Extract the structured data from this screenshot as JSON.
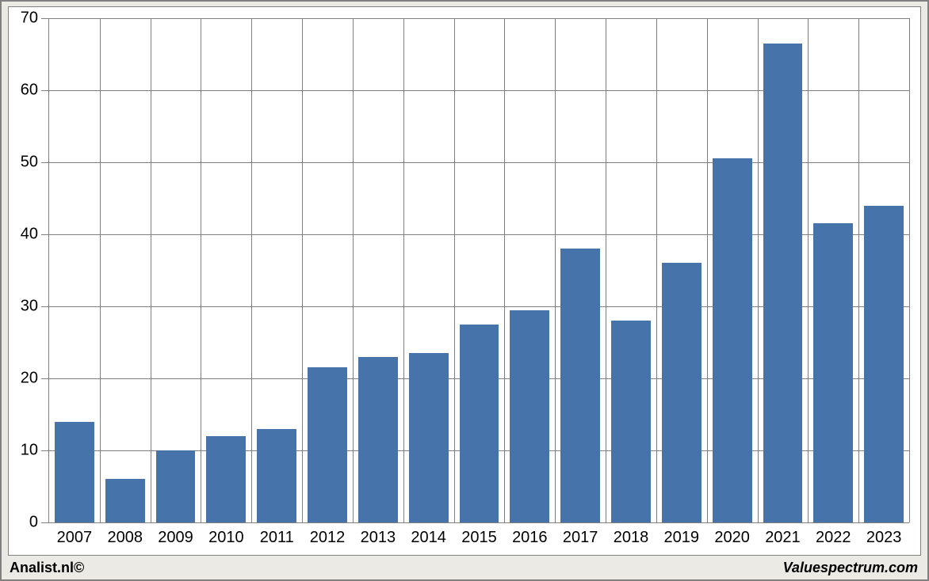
{
  "chart": {
    "type": "bar",
    "categories": [
      "2007",
      "2008",
      "2009",
      "2010",
      "2011",
      "2012",
      "2013",
      "2014",
      "2015",
      "2016",
      "2017",
      "2018",
      "2019",
      "2020",
      "2021",
      "2022",
      "2023"
    ],
    "values": [
      14,
      6,
      10,
      12,
      13,
      21.5,
      23,
      23.5,
      27.5,
      29.5,
      38,
      28,
      36,
      50.5,
      66.5,
      41.5,
      44
    ],
    "bar_color": "#4673a9",
    "background_color": "#ffffff",
    "frame_background": "#eceae4",
    "grid_color": "#808080",
    "axis_color": "#808080",
    "ylim": [
      0,
      70
    ],
    "ytick_step": 10,
    "yticks": [
      0,
      10,
      20,
      30,
      40,
      50,
      60,
      70
    ],
    "bar_width_ratio": 0.78,
    "label_fontsize": 20,
    "label_color": "#000000"
  },
  "credits": {
    "left": "Analist.nl©",
    "right": "Valuespectrum.com"
  }
}
